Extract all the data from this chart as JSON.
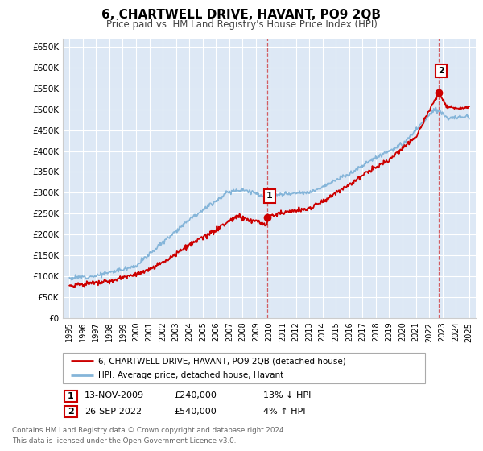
{
  "title": "6, CHARTWELL DRIVE, HAVANT, PO9 2QB",
  "subtitle": "Price paid vs. HM Land Registry's House Price Index (HPI)",
  "ytick_values": [
    0,
    50000,
    100000,
    150000,
    200000,
    250000,
    300000,
    350000,
    400000,
    450000,
    500000,
    550000,
    600000,
    650000
  ],
  "ylabel_ticks": [
    "£0",
    "£50K",
    "£100K",
    "£150K",
    "£200K",
    "£250K",
    "£300K",
    "£350K",
    "£400K",
    "£450K",
    "£500K",
    "£550K",
    "£600K",
    "£650K"
  ],
  "xtick_years": [
    1995,
    1996,
    1997,
    1998,
    1999,
    2000,
    2001,
    2002,
    2003,
    2004,
    2005,
    2006,
    2007,
    2008,
    2009,
    2010,
    2011,
    2012,
    2013,
    2014,
    2015,
    2016,
    2017,
    2018,
    2019,
    2020,
    2021,
    2022,
    2023,
    2024,
    2025
  ],
  "xlim_start": 1994.5,
  "xlim_end": 2025.5,
  "ylim_min": 0,
  "ylim_max": 670000,
  "sale1_year": 2009.87,
  "sale1_price": 240000,
  "sale2_year": 2022.74,
  "sale2_price": 540000,
  "red_color": "#cc0000",
  "blue_color": "#85b5d9",
  "background_color": "#dde8f5",
  "grid_color": "#ffffff",
  "legend_label_red": "6, CHARTWELL DRIVE, HAVANT, PO9 2QB (detached house)",
  "legend_label_blue": "HPI: Average price, detached house, Havant",
  "annotation1_label": "1",
  "annotation1_date": "13-NOV-2009",
  "annotation1_price": "£240,000",
  "annotation1_pct": "13% ↓ HPI",
  "annotation2_label": "2",
  "annotation2_date": "26-SEP-2022",
  "annotation2_price": "£540,000",
  "annotation2_pct": "4% ↑ HPI",
  "footer_line1": "Contains HM Land Registry data © Crown copyright and database right 2024.",
  "footer_line2": "This data is licensed under the Open Government Licence v3.0."
}
